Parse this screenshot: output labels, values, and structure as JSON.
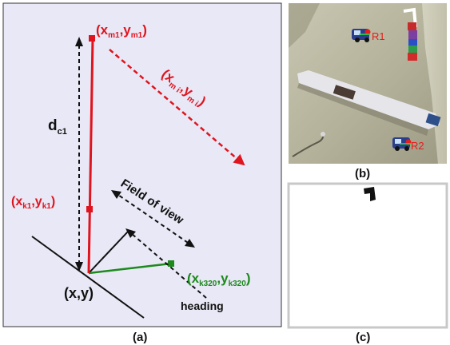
{
  "colors": {
    "panel_bg": "#e8e8f6",
    "red": "#e0141e",
    "green": "#1d8a1d",
    "black": "#111111"
  },
  "panel_a": {
    "caption": "(a)",
    "label_m1": {
      "base_x": "(x",
      "sub_x": "m1",
      "comma": ",y",
      "sub_y": "m1",
      "close": ")"
    },
    "label_mi": {
      "base_x": "(x",
      "sub_x": "m i",
      "comma": ",y",
      "sub_y": "m i",
      "close": ")"
    },
    "label_dc1": {
      "base": "d",
      "sub": "c1"
    },
    "label_k1": {
      "base_x": "(x",
      "sub_x": "k1",
      "comma": ",y",
      "sub_y": "k1",
      "close": ")"
    },
    "label_k320": {
      "base_x": "(x",
      "sub_x": "k320",
      "comma": ",y",
      "sub_y": "k320",
      "close": ")"
    },
    "label_xy": "(x,y)",
    "label_fov": "Field of view",
    "label_heading": "heading"
  },
  "panel_b": {
    "caption": "(b)",
    "robot1_label": "R1",
    "robot2_label": "R2"
  },
  "panel_c": {
    "caption": "(c)"
  }
}
